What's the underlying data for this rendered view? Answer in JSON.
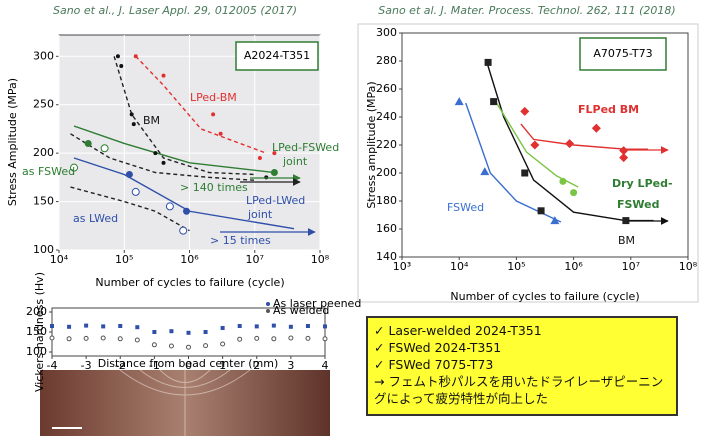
{
  "chart_data": [
    {
      "type": "scatter",
      "subtitle": "Sano et al., J. Laser Appl. 29, 012005 (2017)",
      "label": "A2024-T351",
      "xlabel": "Number of cycles to failure (cycle)",
      "ylabel": "Stress Amplitude (MPa)",
      "xlog": true,
      "grid": true,
      "xlim": [
        10000,
        100000000
      ],
      "ylim": [
        100,
        322
      ],
      "xticks": [
        {
          "value": 10000,
          "label": "10⁴"
        },
        {
          "value": 100000,
          "label": "10⁵"
        },
        {
          "value": 1000000,
          "label": "10⁶"
        },
        {
          "value": 10000000,
          "label": "10⁷"
        },
        {
          "value": 100000000,
          "label": "10⁸"
        }
      ],
      "yticks": [
        100,
        150,
        200,
        250,
        300
      ],
      "series": [
        {
          "kind": "line",
          "color": "#e03030",
          "dashed": true,
          "x": [
            150000,
            400000,
            1500000,
            15000000
          ],
          "values": [
            300,
            270,
            225,
            200
          ]
        },
        {
          "kind": "line",
          "color": "#222222",
          "dashed": true,
          "x": [
            70000,
            130000,
            400000,
            2000000,
            10000000
          ],
          "values": [
            300,
            240,
            195,
            180,
            178
          ]
        },
        {
          "kind": "line",
          "color": "#222222",
          "dashed": true,
          "x": [
            15000,
            60000,
            300000,
            2000000,
            10000000
          ],
          "values": [
            220,
            195,
            180,
            175,
            172
          ]
        },
        {
          "kind": "line",
          "color": "#2e7d32",
          "dashed": false,
          "x": [
            17000,
            100000,
            1000000,
            20000000
          ],
          "values": [
            228,
            210,
            190,
            180
          ]
        },
        {
          "kind": "line",
          "color": "#2f4fa8",
          "dashed": false,
          "x": [
            17000,
            100000,
            1000000,
            40000000
          ],
          "values": [
            195,
            178,
            140,
            122
          ]
        },
        {
          "kind": "line",
          "color": "#222222",
          "dashed": true,
          "x": [
            15000,
            100000,
            300000,
            1000000
          ],
          "values": [
            165,
            150,
            140,
            120
          ]
        },
        {
          "kind": "scatter",
          "marker": "dot",
          "color": "#111111",
          "x": [
            80000,
            90000,
            130000,
            140000,
            300000,
            400000,
            15000000
          ],
          "values": [
            300,
            290,
            240,
            230,
            200,
            190,
            175
          ]
        },
        {
          "kind": "scatter",
          "marker": "dot",
          "color": "#e03030",
          "x": [
            150000,
            400000,
            2300000,
            3000000,
            12000000,
            20000000
          ],
          "values": [
            300,
            280,
            240,
            220,
            195,
            200
          ]
        },
        {
          "kind": "scatter",
          "marker": "circle",
          "color": "#2e7d32",
          "x": [
            28000,
            20000000
          ],
          "values": [
            210,
            180
          ]
        },
        {
          "kind": "scatter",
          "marker": "open",
          "color": "#2e7d32",
          "x": [
            17000,
            50000
          ],
          "values": [
            185,
            205
          ]
        },
        {
          "kind": "scatter",
          "marker": "circle",
          "color": "#2f4fa8",
          "x": [
            120000,
            900000
          ],
          "values": [
            178,
            140
          ]
        },
        {
          "kind": "scatter",
          "marker": "open",
          "color": "#2f4fa8",
          "x": [
            150000,
            500000,
            800000
          ],
          "values": [
            160,
            145,
            120
          ]
        }
      ],
      "annotations": [
        {
          "text": "BM",
          "color": "#111111"
        },
        {
          "text": "LPed-BM",
          "color": "#e03030"
        },
        {
          "text": "LPed-FSWed",
          "color": "#2e7d32"
        },
        {
          "text": "joint",
          "color": "#2e7d32"
        },
        {
          "text": "as FSWed",
          "color": "#2e7d32"
        },
        {
          "text": "> 140 times",
          "color": "#2e7d32"
        },
        {
          "text": "LPed-LWed",
          "color": "#2f4fa8"
        },
        {
          "text": "joint",
          "color": "#2f4fa8"
        },
        {
          "text": "as LWed",
          "color": "#2f4fa8"
        },
        {
          "text": "> 15 times",
          "color": "#2f4fa8"
        }
      ]
    },
    {
      "type": "scatter",
      "subtitle": "Sano et al. J. Mater. Process. Technol. 262, 111 (2018)",
      "label": "A7075-T73",
      "xlabel": "Number of cycles to failure (cycle)",
      "ylabel": "Stress amplitude (MPa)",
      "xlog": true,
      "grid": false,
      "xlim": [
        1000,
        100000000
      ],
      "ylim": [
        140,
        300
      ],
      "xticks": [
        {
          "value": 1000,
          "label": "10³"
        },
        {
          "value": 10000,
          "label": "10⁴"
        },
        {
          "value": 100000,
          "label": "10⁵"
        },
        {
          "value": 1000000,
          "label": "10⁶"
        },
        {
          "value": 10000000,
          "label": "10⁷"
        },
        {
          "value": 100000000,
          "label": "10⁸"
        }
      ],
      "yticks": [
        140,
        160,
        180,
        200,
        220,
        240,
        260,
        280,
        300
      ],
      "series": [
        {
          "kind": "line",
          "color": "#3a6fd0",
          "dashed": false,
          "x": [
            13000,
            35000,
            100000,
            600000
          ],
          "values": [
            250,
            200,
            180,
            165
          ]
        },
        {
          "kind": "line",
          "color": "#111111",
          "dashed": false,
          "x": [
            30000,
            60000,
            200000,
            1000000,
            8000000,
            25000000
          ],
          "values": [
            280,
            240,
            195,
            172,
            166,
            166
          ]
        },
        {
          "kind": "line",
          "color": "#7cc444",
          "dashed": false,
          "x": [
            45000,
            150000,
            500000,
            1200000
          ],
          "values": [
            250,
            215,
            198,
            190
          ]
        },
        {
          "kind": "line",
          "color": "#e03030",
          "dashed": false,
          "x": [
            120000,
            200000,
            1000000,
            8000000,
            20000000
          ],
          "values": [
            235,
            224,
            220,
            217,
            217
          ]
        },
        {
          "kind": "scatter",
          "marker": "triangle",
          "color": "#3a6fd0",
          "x": [
            10000,
            28000,
            470000
          ],
          "values": [
            251,
            201,
            166
          ]
        },
        {
          "kind": "scatter",
          "marker": "square",
          "color": "#222222",
          "x": [
            32000,
            40000,
            140000,
            270000,
            8200000
          ],
          "values": [
            279,
            251,
            200,
            173,
            166
          ]
        },
        {
          "kind": "scatter",
          "marker": "circle",
          "color": "#7cc444",
          "x": [
            650000,
            1000000
          ],
          "values": [
            194,
            186
          ]
        },
        {
          "kind": "scatter",
          "marker": "diamond",
          "color": "#e03030",
          "x": [
            140000,
            210000,
            850000,
            2500000,
            7500000,
            7500000
          ],
          "values": [
            244,
            220,
            221,
            232,
            216,
            211
          ]
        }
      ],
      "annotations": [
        {
          "text": "FLPed BM",
          "color": "#e03030"
        },
        {
          "text": "Dry LPed-",
          "color": "#2e7d32"
        },
        {
          "text": "FSWed",
          "color": "#2e7d32"
        },
        {
          "text": "FSWed",
          "color": "#3a6fd0"
        },
        {
          "text": "BM",
          "color": "#111111"
        }
      ]
    },
    {
      "type": "scatter",
      "xlabel": "Distance from bead center (mm)",
      "ylabel": "Vickers hardness (Hv)",
      "xlog": false,
      "grid": false,
      "xlim": [
        -4,
        4
      ],
      "ylim": [
        90,
        210
      ],
      "xticks": [
        -4,
        -3,
        -2,
        -1,
        0,
        1,
        2,
        3,
        4
      ],
      "yticks": [
        100,
        150,
        200
      ],
      "series": [
        {
          "kind": "scatter",
          "marker": "square",
          "color": "#2f4fa8",
          "name": "As laser peened",
          "x": [
            -4,
            -3.5,
            -3,
            -2.5,
            -2,
            -1.5,
            -1,
            -0.5,
            0,
            0.5,
            1,
            1.5,
            2,
            2.5,
            3,
            3.5,
            4
          ],
          "values": [
            165,
            163,
            166,
            164,
            165,
            162,
            150,
            152,
            148,
            150,
            160,
            165,
            164,
            166,
            163,
            165,
            164
          ]
        },
        {
          "kind": "scatter",
          "marker": "open",
          "color": "#555555",
          "name": "As welded",
          "x": [
            -4,
            -3.5,
            -3,
            -2.5,
            -2,
            -1.5,
            -1,
            -0.5,
            0,
            0.5,
            1,
            1.5,
            2,
            2.5,
            3,
            3.5,
            4
          ],
          "values": [
            135,
            133,
            134,
            135,
            133,
            130,
            118,
            115,
            112,
            116,
            120,
            132,
            134,
            133,
            135,
            134,
            133
          ]
        }
      ]
    }
  ],
  "summary": {
    "items": [
      "✓ Laser-welded 2024-T351",
      "✓ FSWed 2024-T351",
      "✓ FSWed 7075-T73",
      "→ フェムト秒パルスを用いたドライレーザピーニングによって疲労特性が向上した"
    ]
  }
}
